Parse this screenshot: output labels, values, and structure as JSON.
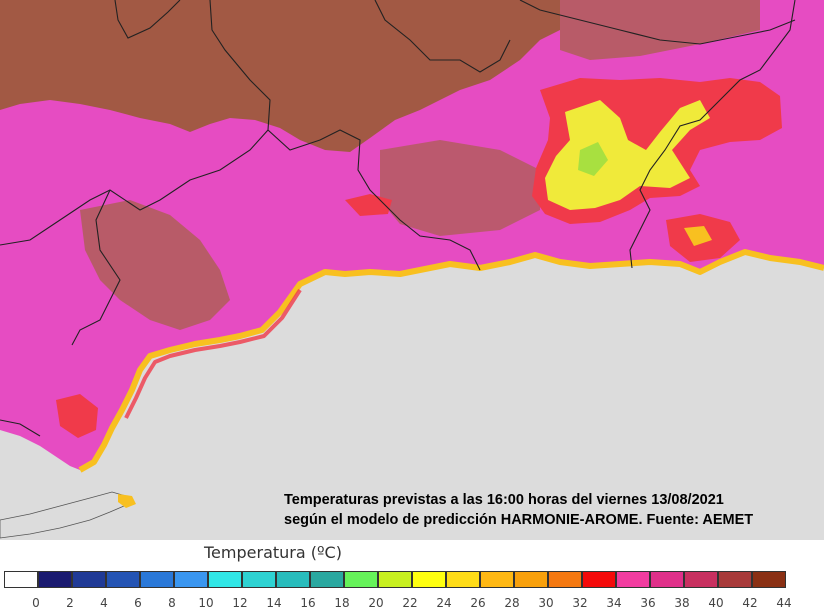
{
  "caption": {
    "line1": "Temperaturas previstas a las 16:00 horas del viernes 13/08/2021",
    "line2": "según el modelo de predicción HARMONIE-AROME. Fuente: AEMET"
  },
  "legend": {
    "title": "Temperatura (ºC)",
    "ticks": [
      "0",
      "2",
      "4",
      "6",
      "8",
      "10",
      "12",
      "14",
      "16",
      "18",
      "20",
      "22",
      "24",
      "26",
      "28",
      "30",
      "32",
      "34",
      "36",
      "38",
      "40",
      "42",
      "44"
    ],
    "colors": [
      "#ffffff",
      "#1a1a70",
      "#203a96",
      "#2454b4",
      "#2a78d8",
      "#3a96f0",
      "#30e6e6",
      "#2ed2d2",
      "#28bcbc",
      "#2aa8a0",
      "#66f25a",
      "#c8f020",
      "#ffff10",
      "#ffdc18",
      "#ffb814",
      "#f8a00c",
      "#f47810",
      "#f40a0a",
      "#f23ca0",
      "#e0308a",
      "#c83060",
      "#a83a3a",
      "#8a3014"
    ]
  },
  "map": {
    "sea_color": "#dcdcdc",
    "land_color": "#e64cc2",
    "plateau_color": "#9c5a3a",
    "hot_color": "#f03a4a",
    "very_hot_color": "#f0ea3a",
    "coast_color": "#f8c020"
  }
}
